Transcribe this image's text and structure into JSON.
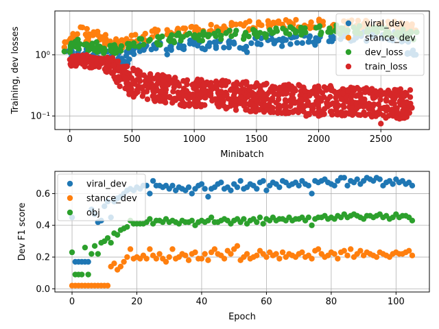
{
  "colors": {
    "blue": "#1f77b4",
    "orange": "#ff7f0e",
    "green": "#2ca02c",
    "red": "#d62728",
    "grid": "#b0b0b0"
  },
  "chart_data": [
    {
      "type": "scatter",
      "xlabel": "Minibatch",
      "ylabel": "Training, dev losses",
      "yscale": "log",
      "xlim": [
        -120,
        2890
      ],
      "ylim": [
        0.06,
        5.2
      ],
      "xticks": [
        0,
        500,
        1000,
        1500,
        2000,
        2500
      ],
      "xticklabels": [
        "0",
        "500",
        "1000",
        "1500",
        "2000",
        "2500"
      ],
      "yticks": [
        0.1,
        1.0
      ],
      "yticklabels": [
        "10⁻¹",
        "10⁰"
      ],
      "grid": true,
      "legend": "top-right",
      "series": [
        {
          "name": "viral_dev",
          "color": "#1f77b4",
          "x": [
            0,
            100,
            200,
            300,
            400,
            450,
            500,
            550,
            600,
            700,
            800,
            900,
            1000,
            1100,
            1200,
            1300,
            1400,
            1500,
            1600,
            1700,
            1800,
            1900,
            2000,
            2100,
            2200,
            2300,
            2400,
            2500,
            2600,
            2700,
            2750
          ],
          "y": [
            1.0,
            1.1,
            1.0,
            1.0,
            0.9,
            0.85,
            1.1,
            1.2,
            1.25,
            1.3,
            1.2,
            1.4,
            1.5,
            1.45,
            1.4,
            1.5,
            1.3,
            1.6,
            1.8,
            1.6,
            1.7,
            1.8,
            1.7,
            1.9,
            2.0,
            1.9,
            2.0,
            2.1,
            2.0,
            1.9,
            1.15
          ]
        },
        {
          "name": "stance_dev",
          "color": "#ff7f0e",
          "x": [
            0,
            50,
            100,
            150,
            200,
            250,
            300,
            350,
            400,
            500,
            600,
            700,
            800,
            900,
            1000,
            1100,
            1200,
            1300,
            1400,
            1500,
            1600,
            1700,
            1800,
            1900,
            2000,
            2100,
            2200,
            2300,
            2400,
            2500,
            2600,
            2700,
            2750
          ],
          "y": [
            1.5,
            2.0,
            2.4,
            1.9,
            2.1,
            1.8,
            1.6,
            1.7,
            1.5,
            1.9,
            2.0,
            2.2,
            2.3,
            2.4,
            2.5,
            2.6,
            2.7,
            2.8,
            3.0,
            2.9,
            3.1,
            3.2,
            3.3,
            3.1,
            3.2,
            3.0,
            3.1,
            3.3,
            3.2,
            3.1,
            3.0,
            2.9,
            2.8
          ]
        },
        {
          "name": "dev_loss",
          "color": "#2ca02c",
          "x": [
            0,
            50,
            100,
            150,
            200,
            250,
            300,
            350,
            400,
            500,
            600,
            700,
            800,
            900,
            1000,
            1100,
            1200,
            1300,
            1400,
            1500,
            1600,
            1700,
            1800,
            1900,
            2000,
            2100,
            2200,
            2300,
            2400,
            2500,
            2600,
            2700,
            2750
          ],
          "y": [
            1.3,
            1.5,
            1.6,
            1.3,
            1.4,
            1.3,
            1.2,
            1.3,
            1.2,
            1.5,
            1.6,
            1.7,
            1.8,
            1.9,
            2.0,
            2.0,
            2.1,
            2.2,
            2.1,
            2.2,
            2.3,
            2.4,
            2.5,
            2.4,
            2.5,
            2.6,
            2.5,
            2.6,
            2.5,
            2.4,
            2.3,
            2.2,
            2.1
          ]
        },
        {
          "name": "train_loss",
          "color": "#d62728",
          "x": [
            0,
            60,
            120,
            180,
            240,
            300,
            350,
            400,
            450,
            500,
            600,
            700,
            800,
            900,
            1000,
            1100,
            1200,
            1300,
            1400,
            1500,
            1600,
            1700,
            1800,
            1900,
            2000,
            2100,
            2200,
            2300,
            2400,
            2500,
            2600,
            2700,
            2750
          ],
          "y": [
            0.85,
            0.8,
            0.8,
            0.75,
            0.75,
            0.7,
            0.6,
            0.5,
            0.4,
            0.35,
            0.3,
            0.28,
            0.26,
            0.25,
            0.24,
            0.23,
            0.22,
            0.22,
            0.21,
            0.2,
            0.2,
            0.19,
            0.19,
            0.18,
            0.18,
            0.18,
            0.17,
            0.17,
            0.17,
            0.16,
            0.16,
            0.16,
            0.2
          ],
          "spread": [
            0.25,
            0.25,
            0.25,
            0.2,
            0.2,
            0.3,
            0.4,
            0.5,
            0.5,
            0.55,
            0.55,
            0.55,
            0.55,
            0.55,
            0.55,
            0.55,
            0.55,
            0.55,
            0.55,
            0.55,
            0.55,
            0.55,
            0.55,
            0.55,
            0.55,
            0.55,
            0.55,
            0.55,
            0.55,
            0.55,
            0.55,
            0.55,
            0.55
          ],
          "outliers": [
            [
              2500,
              0.075
            ],
            [
              2650,
              0.09
            ],
            [
              2000,
              0.1
            ],
            [
              1900,
              0.1
            ]
          ]
        }
      ]
    },
    {
      "type": "scatter",
      "xlabel": "Epoch",
      "ylabel": "Dev F1 score",
      "xlim": [
        -5.3,
        110.3
      ],
      "ylim": [
        -0.02,
        0.74
      ],
      "xticks": [
        0,
        20,
        40,
        60,
        80,
        100
      ],
      "xticklabels": [
        "0",
        "20",
        "40",
        "60",
        "80",
        "100"
      ],
      "yticks": [
        0.0,
        0.2,
        0.4,
        0.6
      ],
      "yticklabels": [
        "0.0",
        "0.2",
        "0.4",
        "0.6"
      ],
      "grid": true,
      "legend": "top-left",
      "series": [
        {
          "name": "viral_dev",
          "color": "#1f77b4",
          "x": [
            0,
            1,
            2,
            3,
            4,
            5,
            6,
            7,
            8,
            9,
            10,
            11,
            12,
            13,
            14,
            15,
            16,
            17,
            18,
            19,
            20,
            21,
            22,
            23,
            24,
            25,
            26,
            27,
            28,
            29,
            30,
            31,
            32,
            33,
            34,
            35,
            36,
            37,
            38,
            39,
            40,
            41,
            42,
            43,
            44,
            45,
            46,
            47,
            48,
            49,
            50,
            51,
            52,
            53,
            54,
            55,
            56,
            57,
            58,
            59,
            60,
            61,
            62,
            63,
            64,
            65,
            66,
            67,
            68,
            69,
            70,
            71,
            72,
            73,
            74,
            75,
            76,
            77,
            78,
            79,
            80,
            81,
            82,
            83,
            84,
            85,
            86,
            87,
            88,
            89,
            90,
            91,
            92,
            93,
            94,
            95,
            96,
            97,
            98,
            99,
            100,
            101,
            102,
            103,
            104,
            105
          ],
          "y": [
            0.45,
            0.17,
            0.17,
            0.17,
            0.17,
            0.17,
            0.5,
            0.47,
            0.42,
            0.43,
            0.52,
            0.55,
            0.45,
            0.55,
            0.57,
            0.58,
            0.6,
            0.62,
            0.63,
            0.62,
            0.64,
            0.63,
            0.65,
            0.65,
            0.6,
            0.68,
            0.65,
            0.65,
            0.64,
            0.65,
            0.63,
            0.65,
            0.62,
            0.64,
            0.63,
            0.62,
            0.64,
            0.6,
            0.63,
            0.65,
            0.66,
            0.63,
            0.58,
            0.63,
            0.64,
            0.66,
            0.67,
            0.63,
            0.64,
            0.62,
            0.66,
            0.64,
            0.68,
            0.63,
            0.64,
            0.66,
            0.65,
            0.63,
            0.67,
            0.68,
            0.62,
            0.65,
            0.67,
            0.66,
            0.64,
            0.68,
            0.67,
            0.65,
            0.66,
            0.67,
            0.65,
            0.68,
            0.66,
            0.65,
            0.6,
            0.68,
            0.67,
            0.68,
            0.69,
            0.67,
            0.66,
            0.65,
            0.68,
            0.7,
            0.7,
            0.65,
            0.68,
            0.67,
            0.69,
            0.66,
            0.68,
            0.7,
            0.69,
            0.68,
            0.7,
            0.69,
            0.65,
            0.67,
            0.68,
            0.66,
            0.69,
            0.67,
            0.68,
            0.66,
            0.67,
            0.65
          ]
        },
        {
          "name": "stance_dev",
          "color": "#ff7f0e",
          "x": [
            0,
            1,
            2,
            3,
            4,
            5,
            6,
            7,
            8,
            9,
            10,
            11,
            12,
            13,
            14,
            15,
            16,
            17,
            18,
            19,
            20,
            21,
            22,
            23,
            24,
            25,
            26,
            27,
            28,
            29,
            30,
            31,
            32,
            33,
            34,
            35,
            36,
            37,
            38,
            39,
            40,
            41,
            42,
            43,
            44,
            45,
            46,
            47,
            48,
            49,
            50,
            51,
            52,
            53,
            54,
            55,
            56,
            57,
            58,
            59,
            60,
            61,
            62,
            63,
            64,
            65,
            66,
            67,
            68,
            69,
            70,
            71,
            72,
            73,
            74,
            75,
            76,
            77,
            78,
            79,
            80,
            81,
            82,
            83,
            84,
            85,
            86,
            87,
            88,
            89,
            90,
            91,
            92,
            93,
            94,
            95,
            96,
            97,
            98,
            99,
            100,
            101,
            102,
            103,
            104,
            105
          ],
          "y": [
            0.02,
            0.02,
            0.02,
            0.02,
            0.02,
            0.02,
            0.02,
            0.02,
            0.02,
            0.02,
            0.02,
            0.02,
            0.14,
            0.16,
            0.12,
            0.14,
            0.17,
            0.2,
            0.25,
            0.19,
            0.2,
            0.19,
            0.21,
            0.19,
            0.25,
            0.21,
            0.19,
            0.22,
            0.19,
            0.17,
            0.2,
            0.25,
            0.19,
            0.2,
            0.22,
            0.21,
            0.18,
            0.22,
            0.23,
            0.19,
            0.19,
            0.22,
            0.18,
            0.23,
            0.25,
            0.22,
            0.21,
            0.19,
            0.24,
            0.22,
            0.25,
            0.27,
            0.18,
            0.2,
            0.22,
            0.19,
            0.2,
            0.21,
            0.24,
            0.22,
            0.2,
            0.23,
            0.21,
            0.22,
            0.19,
            0.23,
            0.2,
            0.22,
            0.21,
            0.2,
            0.22,
            0.23,
            0.2,
            0.21,
            0.19,
            0.24,
            0.25,
            0.22,
            0.2,
            0.21,
            0.23,
            0.22,
            0.19,
            0.23,
            0.24,
            0.21,
            0.25,
            0.2,
            0.22,
            0.24,
            0.21,
            0.23,
            0.22,
            0.21,
            0.2,
            0.23,
            0.22,
            0.21,
            0.2,
            0.22,
            0.23,
            0.22,
            0.22,
            0.23,
            0.24,
            0.21
          ]
        },
        {
          "name": "obj",
          "color": "#2ca02c",
          "x": [
            0,
            1,
            2,
            3,
            4,
            5,
            6,
            7,
            8,
            9,
            10,
            11,
            12,
            13,
            14,
            15,
            16,
            17,
            18,
            19,
            20,
            21,
            22,
            23,
            24,
            25,
            26,
            27,
            28,
            29,
            30,
            31,
            32,
            33,
            34,
            35,
            36,
            37,
            38,
            39,
            40,
            41,
            42,
            43,
            44,
            45,
            46,
            47,
            48,
            49,
            50,
            51,
            52,
            53,
            54,
            55,
            56,
            57,
            58,
            59,
            60,
            61,
            62,
            63,
            64,
            65,
            66,
            67,
            68,
            69,
            70,
            71,
            72,
            73,
            74,
            75,
            76,
            77,
            78,
            79,
            80,
            81,
            82,
            83,
            84,
            85,
            86,
            87,
            88,
            89,
            90,
            91,
            92,
            93,
            94,
            95,
            96,
            97,
            98,
            99,
            100,
            101,
            102,
            103,
            104,
            105
          ],
          "y": [
            0.23,
            0.09,
            0.09,
            0.09,
            0.26,
            0.09,
            0.22,
            0.27,
            0.22,
            0.29,
            0.3,
            0.32,
            0.29,
            0.35,
            0.34,
            0.37,
            0.38,
            0.39,
            0.43,
            0.41,
            0.41,
            0.41,
            0.41,
            0.42,
            0.44,
            0.41,
            0.43,
            0.43,
            0.42,
            0.44,
            0.42,
            0.43,
            0.42,
            0.41,
            0.43,
            0.42,
            0.42,
            0.43,
            0.4,
            0.42,
            0.43,
            0.42,
            0.43,
            0.45,
            0.42,
            0.42,
            0.43,
            0.44,
            0.43,
            0.41,
            0.43,
            0.44,
            0.42,
            0.44,
            0.41,
            0.43,
            0.44,
            0.42,
            0.45,
            0.41,
            0.44,
            0.43,
            0.45,
            0.43,
            0.44,
            0.44,
            0.43,
            0.45,
            0.43,
            0.44,
            0.44,
            0.45,
            0.43,
            0.45,
            0.4,
            0.44,
            0.45,
            0.45,
            0.46,
            0.44,
            0.45,
            0.44,
            0.46,
            0.45,
            0.47,
            0.45,
            0.46,
            0.47,
            0.46,
            0.45,
            0.44,
            0.46,
            0.46,
            0.45,
            0.46,
            0.47,
            0.45,
            0.46,
            0.44,
            0.45,
            0.47,
            0.45,
            0.46,
            0.46,
            0.45,
            0.43
          ]
        }
      ]
    }
  ]
}
